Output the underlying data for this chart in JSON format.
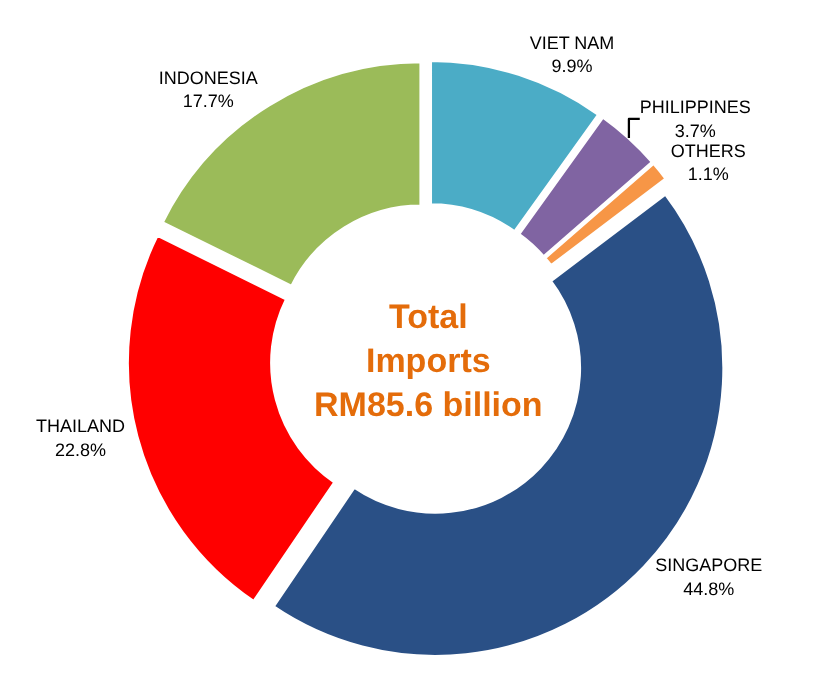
{
  "chart_data": {
    "type": "donut",
    "categories": [
      "VIET NAM",
      "PHILIPPINES",
      "OTHERS",
      "SINGAPORE",
      "THAILAND",
      "INDONESIA"
    ],
    "values": [
      9.9,
      3.7,
      1.1,
      44.8,
      22.8,
      17.7
    ],
    "colors": [
      "#4bacc6",
      "#8064a2",
      "#f79646",
      "#2a5086",
      "#ff0000",
      "#9bbb59"
    ],
    "value_labels": [
      "9.9%",
      "3.7%",
      "1.1%",
      "44.8%",
      "22.8%",
      "17.7%"
    ],
    "annotations": [
      "Total\nImports\nRM85.6 billion"
    ],
    "legend": false
  }
}
